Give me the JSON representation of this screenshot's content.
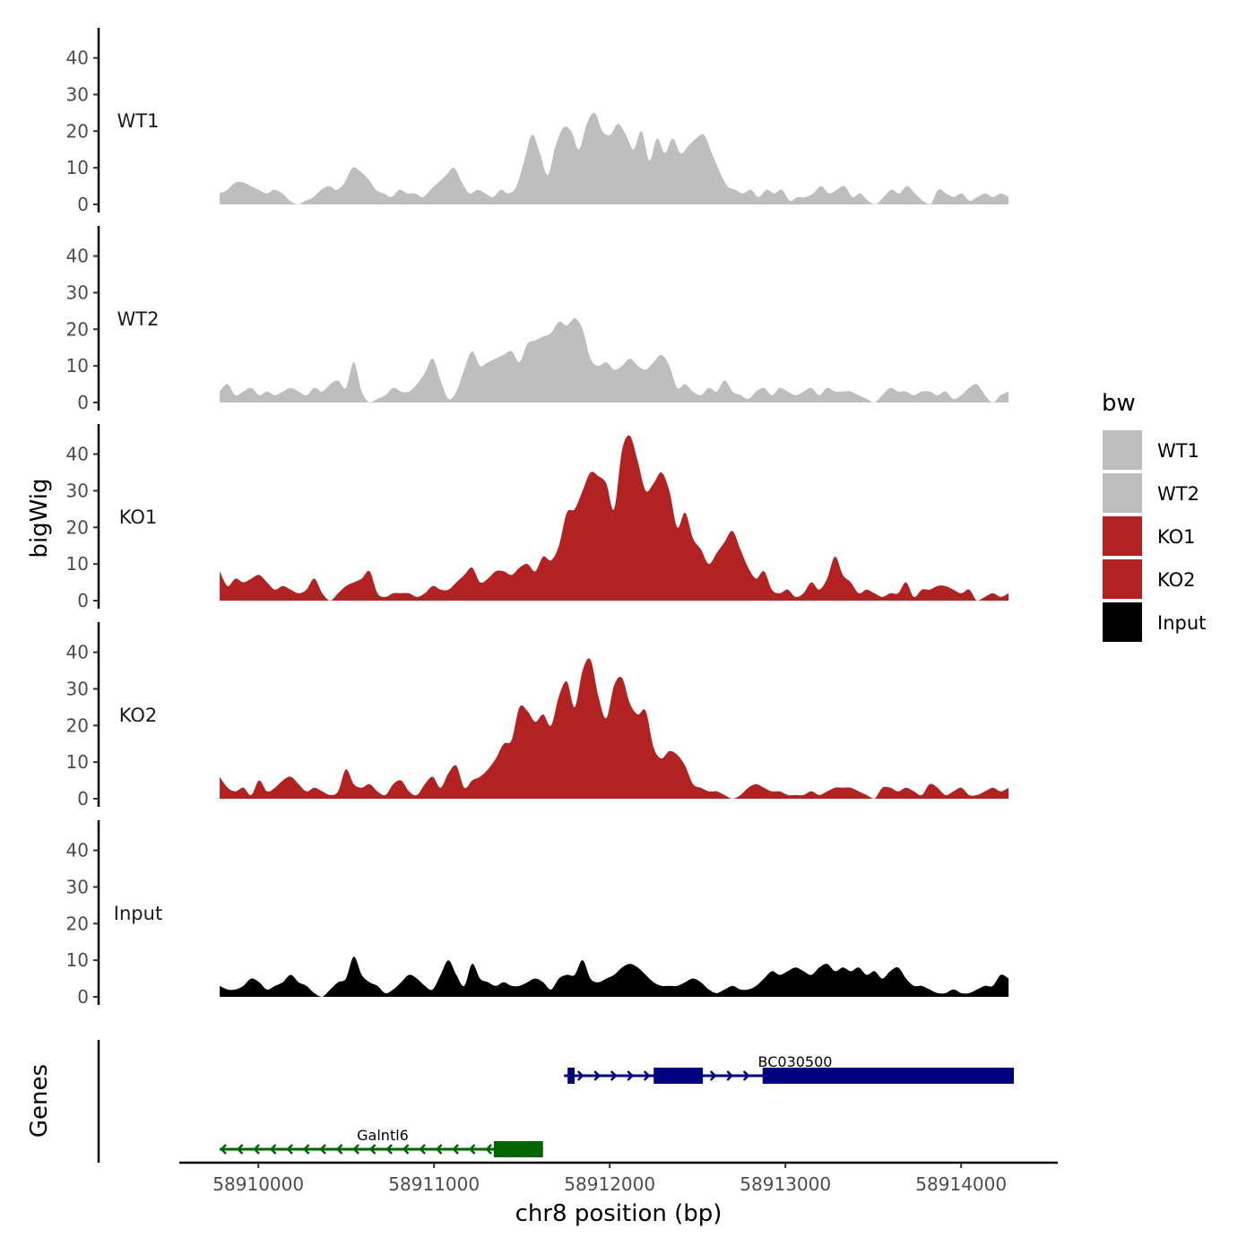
{
  "chart_data": {
    "type": "area",
    "ylabel": "bigWig",
    "xlabel": "chr8 position (bp)",
    "genes_label": "Genes",
    "ylim": [
      0,
      48
    ],
    "yticks": [
      0,
      10,
      20,
      30,
      40
    ],
    "xlim": [
      58909550,
      58914550
    ],
    "xticks": [
      58910000,
      58911000,
      58912000,
      58913000,
      58914000
    ],
    "xtick_labels": [
      "58910000",
      "58911000",
      "58912000",
      "58913000",
      "58914000"
    ],
    "x_start": 58909780,
    "x_end": 58914270,
    "legend": {
      "title": "bw",
      "entries": [
        {
          "name": "WT1",
          "color": "#bebebe"
        },
        {
          "name": "WT2",
          "color": "#bebebe"
        },
        {
          "name": "KO1",
          "color": "#b22222"
        },
        {
          "name": "KO2",
          "color": "#b22222"
        },
        {
          "name": "Input",
          "color": "#000000"
        }
      ]
    },
    "tracks": [
      {
        "name": "WT1",
        "color": "#bebebe",
        "values": [
          3,
          4,
          6,
          6,
          5,
          4,
          3,
          4,
          3,
          1,
          0,
          1,
          2,
          4,
          5,
          4,
          6,
          10,
          9,
          7,
          4,
          3,
          2,
          4,
          3,
          3,
          2,
          4,
          6,
          8,
          10,
          6,
          3,
          4,
          3,
          2,
          4,
          3,
          5,
          12,
          19,
          14,
          8,
          16,
          21,
          20,
          15,
          22,
          25,
          20,
          19,
          22,
          19,
          15,
          20,
          12,
          18,
          14,
          18,
          14,
          16,
          18,
          19,
          14,
          9,
          5,
          4,
          3,
          4,
          2,
          4,
          3,
          4,
          1,
          2,
          2,
          3,
          5,
          3,
          4,
          5,
          2,
          3,
          1,
          0,
          2,
          4,
          3,
          5,
          3,
          1,
          0,
          4,
          3,
          2,
          3,
          1,
          2,
          3,
          2,
          3,
          2
        ]
      },
      {
        "name": "WT2",
        "color": "#bebebe",
        "values": [
          3,
          5,
          2,
          3,
          4,
          2,
          3,
          2,
          3,
          4,
          3,
          2,
          4,
          3,
          5,
          6,
          4,
          11,
          3,
          0,
          1,
          2,
          4,
          3,
          3,
          5,
          8,
          12,
          6,
          1,
          3,
          9,
          14,
          10,
          11,
          12,
          13,
          14,
          11,
          16,
          17,
          18,
          19,
          22,
          21,
          23,
          20,
          12,
          10,
          11,
          9,
          10,
          12,
          10,
          9,
          11,
          13,
          10,
          4,
          5,
          3,
          2,
          4,
          3,
          6,
          3,
          2,
          1,
          3,
          4,
          2,
          4,
          3,
          2,
          3,
          4,
          2,
          4,
          3,
          3,
          3,
          2,
          1,
          0,
          2,
          4,
          3,
          3,
          2,
          3,
          3,
          2,
          3,
          1,
          2,
          4,
          5,
          2,
          0,
          2,
          3
        ]
      },
      {
        "name": "KO1",
        "color": "#b22222",
        "values": [
          8,
          4,
          6,
          5,
          6,
          7,
          5,
          3,
          4,
          3,
          2,
          3,
          6,
          2,
          0,
          2,
          4,
          5,
          6,
          8,
          2,
          1,
          2,
          2,
          2,
          1,
          2,
          4,
          3,
          3,
          5,
          7,
          9,
          5,
          6,
          8,
          8,
          7,
          9,
          10,
          8,
          12,
          11,
          15,
          24,
          25,
          30,
          35,
          34,
          32,
          25,
          41,
          45,
          38,
          30,
          32,
          35,
          30,
          20,
          24,
          17,
          14,
          10,
          13,
          16,
          19,
          14,
          9,
          6,
          8,
          3,
          2,
          3,
          1,
          2,
          5,
          3,
          6,
          12,
          7,
          5,
          2,
          3,
          2,
          1,
          2,
          2,
          5,
          1,
          3,
          3,
          4,
          4,
          3,
          2,
          3,
          0,
          1,
          2,
          1,
          2
        ]
      },
      {
        "name": "KO2",
        "color": "#b22222",
        "values": [
          6,
          3,
          2,
          3,
          1,
          5,
          2,
          3,
          5,
          6,
          4,
          2,
          3,
          2,
          1,
          2,
          8,
          4,
          3,
          4,
          2,
          1,
          4,
          5,
          2,
          1,
          4,
          6,
          3,
          7,
          9,
          3,
          5,
          6,
          8,
          11,
          15,
          16,
          25,
          24,
          21,
          23,
          20,
          28,
          32,
          25,
          35,
          38,
          28,
          22,
          31,
          33,
          26,
          23,
          24,
          14,
          11,
          13,
          12,
          9,
          4,
          3,
          2,
          2,
          1,
          0,
          1,
          3,
          4,
          3,
          2,
          2,
          1,
          1,
          1,
          2,
          1,
          2,
          3,
          3,
          3,
          2,
          1,
          0,
          3,
          3,
          2,
          3,
          2,
          1,
          4,
          3,
          1,
          2,
          3,
          1,
          1,
          2,
          3,
          2,
          3
        ]
      },
      {
        "name": "Input",
        "color": "#000000",
        "values": [
          3,
          2,
          2,
          3,
          5,
          4,
          2,
          3,
          4,
          6,
          4,
          3,
          1,
          0,
          2,
          4,
          5,
          11,
          6,
          4,
          3,
          1,
          2,
          4,
          6,
          5,
          3,
          2,
          6,
          10,
          6,
          3,
          9,
          5,
          4,
          3,
          4,
          3,
          3,
          4,
          5,
          4,
          2,
          5,
          6,
          6,
          10,
          5,
          4,
          5,
          6,
          8,
          9,
          8,
          6,
          4,
          3,
          3,
          3,
          4,
          5,
          4,
          2,
          1,
          2,
          3,
          2,
          2,
          3,
          5,
          7,
          6,
          7,
          8,
          7,
          6,
          8,
          9,
          7,
          8,
          7,
          8,
          6,
          7,
          5,
          7,
          8,
          5,
          3,
          3,
          2,
          1,
          1,
          2,
          1,
          1,
          2,
          3,
          3,
          6,
          5
        ]
      }
    ],
    "genes": [
      {
        "name": "BC030500",
        "strand": "+",
        "color": "#000080",
        "start": 58911740,
        "end": 58914300,
        "exons": [
          [
            58911760,
            58911800
          ],
          [
            58912250,
            58912530
          ],
          [
            58912870,
            58914300
          ]
        ]
      },
      {
        "name": "Galntl6",
        "strand": "-",
        "color": "#006400",
        "start": 58909780,
        "end": 58911620,
        "exons": [
          [
            58911340,
            58911620
          ]
        ]
      }
    ]
  }
}
